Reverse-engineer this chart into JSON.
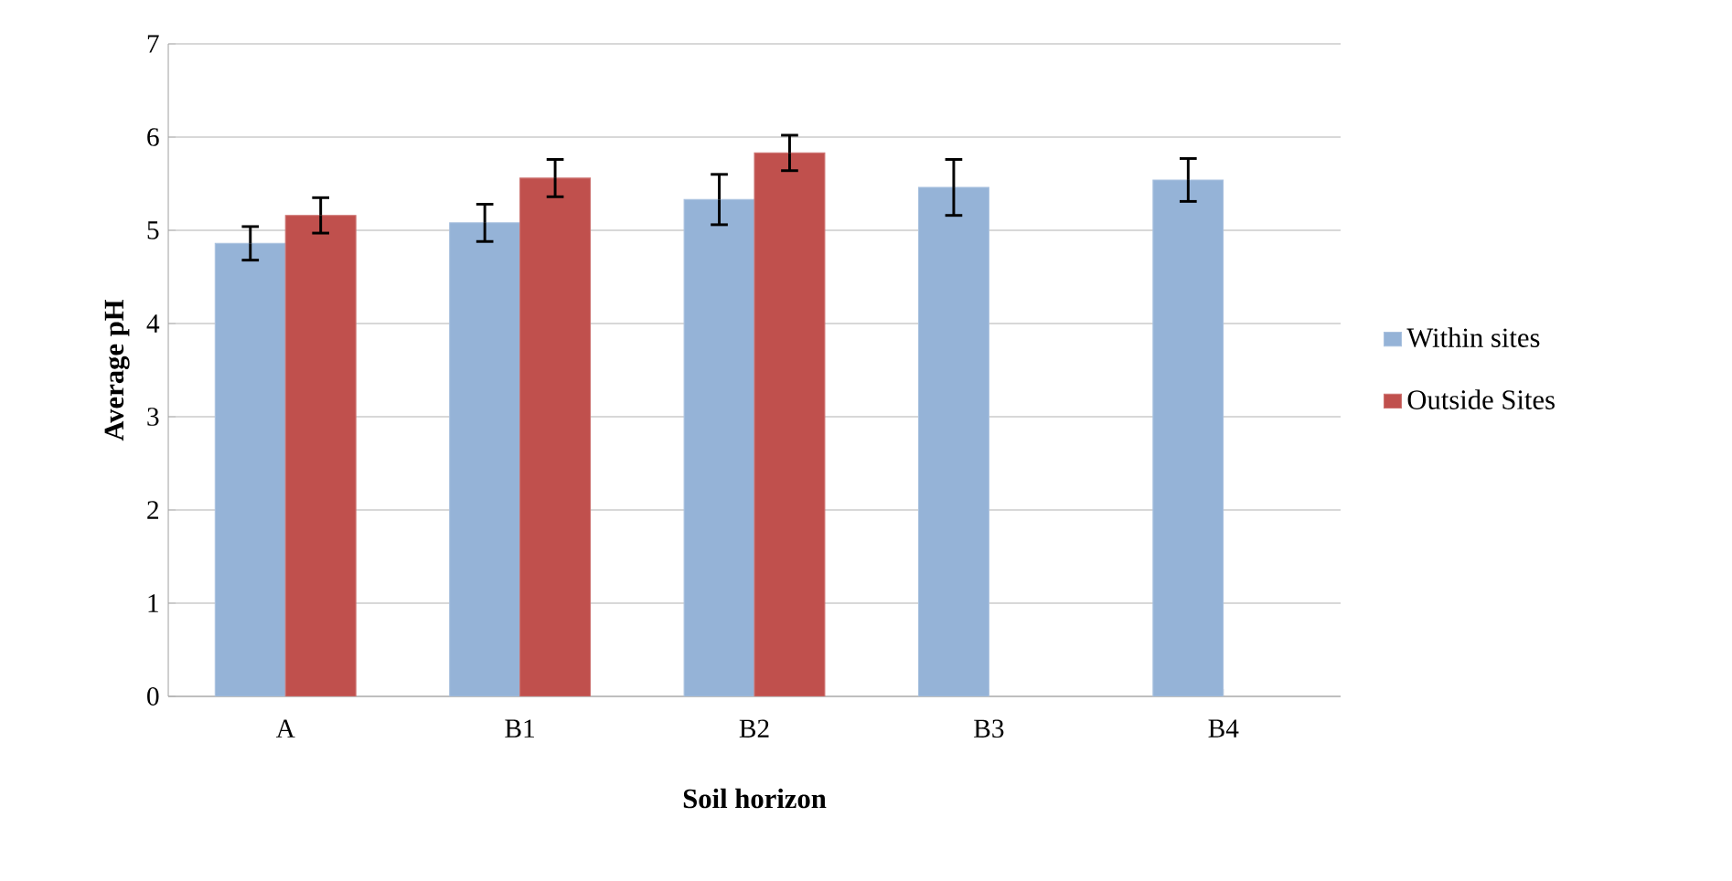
{
  "chart_data": {
    "type": "bar",
    "xlabel": "Soil horizon",
    "ylabel": "Average pH",
    "categories": [
      "A",
      "B1",
      "B2",
      "B3",
      "B4"
    ],
    "series": [
      {
        "name": "Within sites",
        "color": "#95b3d7",
        "values": [
          4.86,
          5.08,
          5.33,
          5.46,
          5.54
        ],
        "errors": [
          0.18,
          0.2,
          0.27,
          0.3,
          0.23
        ]
      },
      {
        "name": "Outside Sites",
        "color": "#c0504d",
        "values": [
          5.16,
          5.56,
          5.83,
          null,
          null
        ],
        "errors": [
          0.19,
          0.2,
          0.19,
          null,
          null
        ]
      }
    ],
    "ylim": [
      0,
      7
    ],
    "yticks": [
      0,
      1,
      2,
      3,
      4,
      5,
      6,
      7
    ],
    "grid": "y",
    "legend": "right"
  }
}
